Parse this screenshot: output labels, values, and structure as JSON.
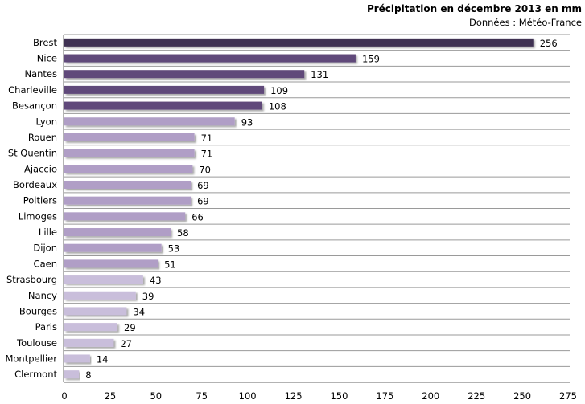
{
  "chart_data": {
    "type": "bar",
    "orientation": "horizontal",
    "title": "Précipitation en décembre 2013 en mm",
    "subtitle": "Données : Météo-France",
    "categories": [
      "Brest",
      "Nice",
      "Nantes",
      "Charleville",
      "Besançon",
      "Lyon",
      "Rouen",
      "St Quentin",
      "Ajaccio",
      "Bordeaux",
      "Poitiers",
      "Limoges",
      "Lille",
      "Dijon",
      "Caen",
      "Strasbourg",
      "Nancy",
      "Bourges",
      "Paris",
      "Toulouse",
      "Montpellier",
      "Clermont"
    ],
    "values": [
      256,
      159,
      131,
      109,
      108,
      93,
      71,
      71,
      70,
      69,
      69,
      66,
      58,
      53,
      51,
      43,
      39,
      34,
      29,
      27,
      14,
      8
    ],
    "xlim": [
      0,
      275
    ],
    "xticks": [
      0,
      25,
      50,
      75,
      100,
      125,
      150,
      175,
      200,
      225,
      250,
      275
    ],
    "grid": "horizontal category separators",
    "legend": "none",
    "colors": {
      "top1": "#3f3252",
      "top2_5": "#614a7a",
      "mid": "#b09ec6",
      "low": "#c9bedb",
      "grid": "#9a9a9a"
    }
  }
}
